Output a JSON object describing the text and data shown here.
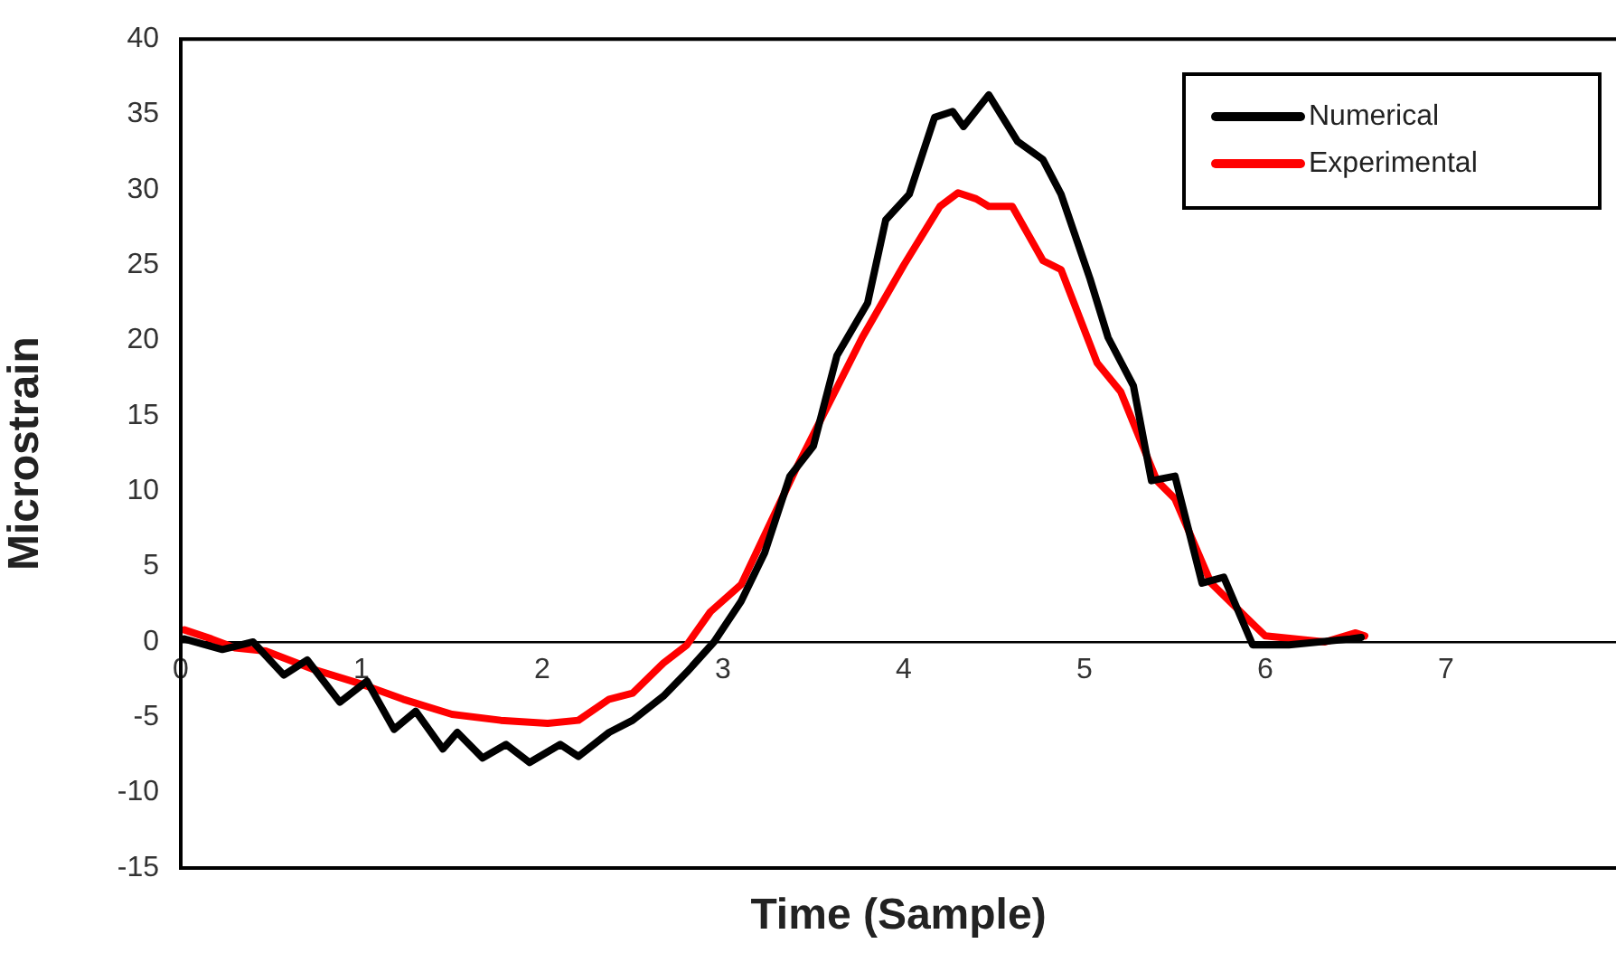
{
  "chart_data": {
    "type": "line",
    "xlabel": "Time (Sample)",
    "ylabel": "Microstrain",
    "xlim": [
      0,
      7.94
    ],
    "ylim": [
      -15,
      40
    ],
    "xticks": [
      0,
      1,
      2,
      3,
      4,
      5,
      6,
      7
    ],
    "yticks": [
      -15,
      -10,
      -5,
      0,
      5,
      10,
      15,
      20,
      25,
      30,
      35,
      40
    ],
    "grid": false,
    "legend": "top right",
    "marker": "none",
    "series": [
      {
        "name": "Numerical",
        "color": "#000000",
        "x": [
          0.02,
          0.23,
          0.4,
          0.57,
          0.7,
          0.88,
          1.03,
          1.18,
          1.3,
          1.45,
          1.53,
          1.67,
          1.8,
          1.93,
          2.1,
          2.2,
          2.37,
          2.5,
          2.67,
          2.8,
          2.95,
          3.1,
          3.23,
          3.37,
          3.5,
          3.63,
          3.8,
          3.9,
          4.03,
          4.17,
          4.27,
          4.33,
          4.47,
          4.63,
          4.77,
          4.87,
          5.03,
          5.13,
          5.27,
          5.37,
          5.5,
          5.65,
          5.77,
          5.93,
          6.13,
          6.47,
          6.53
        ],
        "values": [
          0.2,
          -0.5,
          0,
          -2.2,
          -1.2,
          -4,
          -2.6,
          -5.8,
          -4.6,
          -7.1,
          -6,
          -7.7,
          -6.8,
          -8,
          -6.8,
          -7.6,
          -6,
          -5.2,
          -3.6,
          -2,
          0,
          2.7,
          5.9,
          11,
          13,
          19,
          22.5,
          28,
          29.7,
          34.8,
          35.2,
          34.2,
          36.3,
          33.2,
          32,
          29.7,
          24.1,
          20.2,
          17,
          10.7,
          11,
          3.9,
          4.3,
          -0.2,
          -0.2,
          0.2,
          0.3
        ]
      },
      {
        "name": "Experimental",
        "color": "#ff0000",
        "x": [
          0.02,
          0.17,
          0.3,
          0.47,
          0.73,
          1.0,
          1.23,
          1.5,
          1.77,
          2.03,
          2.2,
          2.37,
          2.5,
          2.67,
          2.8,
          2.93,
          3.1,
          3.4,
          3.77,
          4.0,
          4.2,
          4.3,
          4.4,
          4.47,
          4.6,
          4.77,
          4.87,
          5.07,
          5.2,
          5.4,
          5.5,
          5.7,
          5.93,
          6.0,
          6.33,
          6.5,
          6.55
        ],
        "values": [
          0.8,
          0.2,
          -0.4,
          -0.6,
          -1.8,
          -2.8,
          -3.8,
          -4.8,
          -5.2,
          -5.4,
          -5.2,
          -3.8,
          -3.4,
          -1.4,
          -0.2,
          2,
          3.8,
          11.4,
          20.2,
          25,
          28.9,
          29.8,
          29.4,
          28.9,
          28.9,
          25.3,
          24.7,
          18.5,
          16.6,
          10.7,
          9.5,
          3.9,
          1.2,
          0.4,
          0,
          0.6,
          0.4
        ]
      }
    ]
  }
}
